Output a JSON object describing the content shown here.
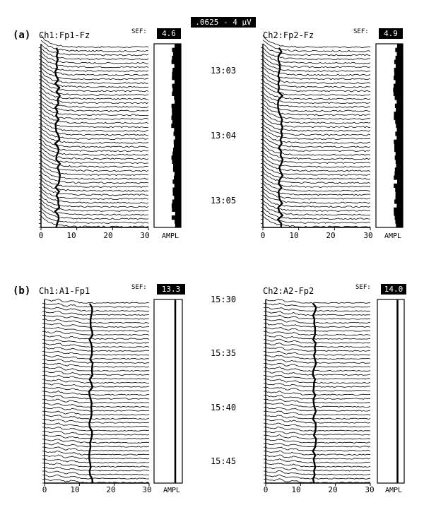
{
  "scale_label": ".0625 - 4 µV",
  "panels": [
    {
      "label": "(a)",
      "times": [
        "13:03",
        "13:04",
        "13:05"
      ],
      "channels": [
        {
          "title": "Ch1:Fp1-Fz",
          "sef_label": "SEF:",
          "sef_value": "4.6",
          "xticks": [
            "0",
            "10",
            "20",
            "30"
          ],
          "ampl_label": "AMPL"
        },
        {
          "title": "Ch2:Fp2-Fz",
          "sef_label": "SEF:",
          "sef_value": "4.9",
          "xticks": [
            "0",
            "10",
            "20",
            "30"
          ],
          "ampl_label": "AMPL"
        }
      ]
    },
    {
      "label": "(b)",
      "times": [
        "15:30",
        "15:35",
        "15:40",
        "15:45"
      ],
      "channels": [
        {
          "title": "Ch1:A1-Fp1",
          "sef_label": "SEF:",
          "sef_value": "13.3",
          "xticks": [
            "0",
            "10",
            "20",
            "30"
          ],
          "ampl_label": "AMPL"
        },
        {
          "title": "Ch2:A2-Fp2",
          "sef_label": "SEF:",
          "sef_value": "14.0",
          "xticks": [
            "0",
            "10",
            "20",
            "30"
          ],
          "ampl_label": "AMPL"
        }
      ]
    }
  ],
  "chart_data": [
    {
      "type": "line",
      "title": "Ch1:Fp1-Fz",
      "xlim": [
        0,
        30
      ],
      "sef": 4.6,
      "traces": 46
    },
    {
      "type": "line",
      "title": "Ch2:Fp2-Fz",
      "xlim": [
        0,
        30
      ],
      "sef": 4.9,
      "traces": 46
    },
    {
      "type": "line",
      "title": "Ch1:A1-Fp1",
      "xlim": [
        0,
        30
      ],
      "sef": 13.3,
      "traces": 46
    },
    {
      "type": "line",
      "title": "Ch2:A2-Fp2",
      "xlim": [
        0,
        30
      ],
      "sef": 14.0,
      "traces": 46
    }
  ]
}
